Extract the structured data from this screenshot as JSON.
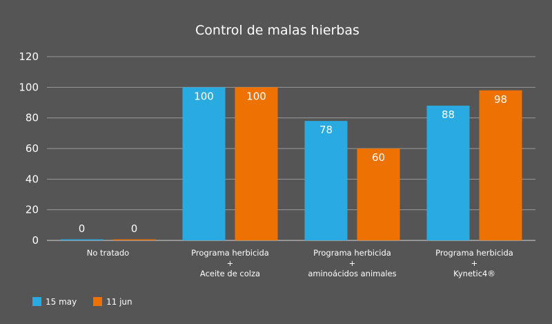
{
  "chart_data": {
    "type": "bar",
    "title": "Control de malas hierbas",
    "xlabel": "",
    "ylabel": "",
    "ylim": [
      0,
      120
    ],
    "yticks": [
      0,
      20,
      40,
      60,
      80,
      100,
      120
    ],
    "grid": true,
    "legend_position": "bottom-left",
    "categories": [
      [
        "No tratado"
      ],
      [
        "Programa herbicida",
        "+",
        "Aceite de colza"
      ],
      [
        "Programa herbicida",
        "+",
        "aminoácidos animales"
      ],
      [
        "Programa herbicida",
        "+",
        "Kynetic4®"
      ]
    ],
    "series": [
      {
        "name": "15 may",
        "color": "#29ABE2",
        "values": [
          0,
          100,
          78,
          88
        ]
      },
      {
        "name": "11 jun",
        "color": "#EE7203",
        "values": [
          0,
          100,
          60,
          98
        ]
      }
    ]
  }
}
